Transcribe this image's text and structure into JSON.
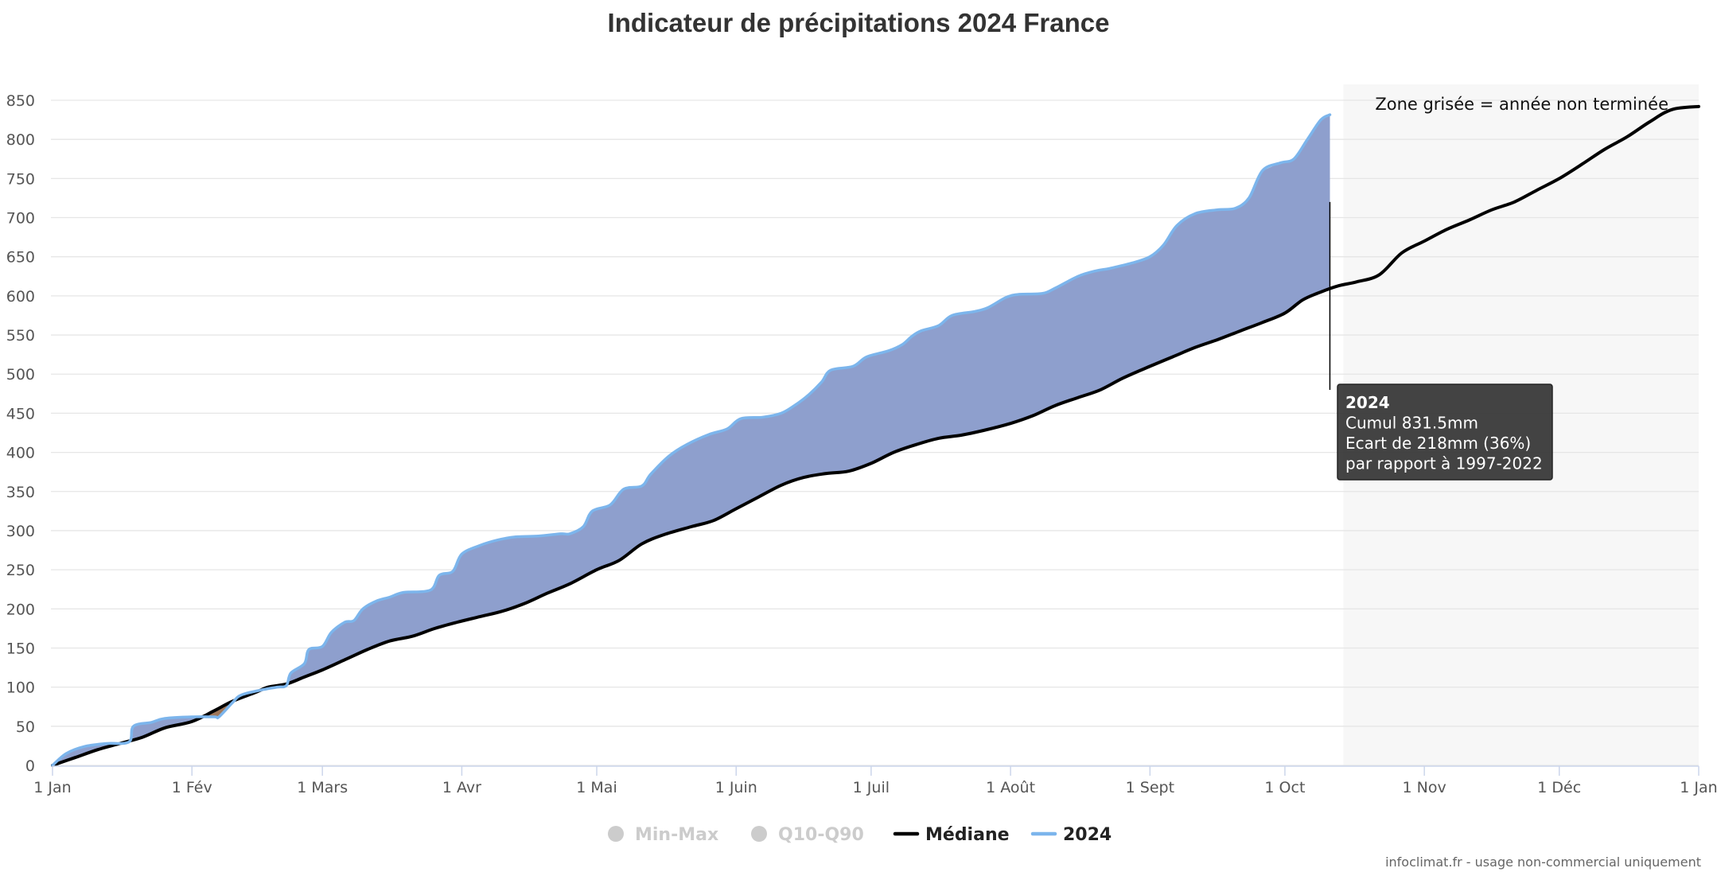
{
  "chart_data": {
    "type": "area",
    "title": "Indicateur de précipitations 2024 France",
    "xlabel": "",
    "ylabel": "",
    "x_unit": "day_of_year",
    "xlim": [
      0,
      366
    ],
    "ylim": [
      0,
      850
    ],
    "yticks": [
      0,
      50,
      100,
      150,
      200,
      250,
      300,
      350,
      400,
      450,
      500,
      550,
      600,
      650,
      700,
      750,
      800,
      850
    ],
    "xticks": [
      {
        "label": "1 Jan",
        "day": 0
      },
      {
        "label": "1 Fév",
        "day": 31
      },
      {
        "label": "1 Mars",
        "day": 60
      },
      {
        "label": "1 Avr",
        "day": 91
      },
      {
        "label": "1 Mai",
        "day": 121
      },
      {
        "label": "1 Juin",
        "day": 152
      },
      {
        "label": "1 Juil",
        "day": 182
      },
      {
        "label": "1 Août",
        "day": 213
      },
      {
        "label": "1 Sept",
        "day": 244
      },
      {
        "label": "1 Oct",
        "day": 274
      },
      {
        "label": "1 Nov",
        "day": 305
      },
      {
        "label": "1 Déc",
        "day": 335
      },
      {
        "label": "1 Jan",
        "day": 366
      }
    ],
    "grid": true,
    "legend_position": "bottom",
    "series": [
      {
        "name": "Médiane",
        "color": "#000000",
        "points": [
          [
            0,
            0
          ],
          [
            5,
            10
          ],
          [
            10,
            20
          ],
          [
            15,
            28
          ],
          [
            20,
            36
          ],
          [
            25,
            48
          ],
          [
            31,
            56
          ],
          [
            36,
            70
          ],
          [
            40,
            82
          ],
          [
            45,
            93
          ],
          [
            48,
            100
          ],
          [
            52,
            104
          ],
          [
            56,
            113
          ],
          [
            60,
            122
          ],
          [
            65,
            135
          ],
          [
            70,
            148
          ],
          [
            75,
            159
          ],
          [
            80,
            165
          ],
          [
            85,
            175
          ],
          [
            90,
            183
          ],
          [
            95,
            190
          ],
          [
            100,
            197
          ],
          [
            105,
            207
          ],
          [
            110,
            220
          ],
          [
            115,
            232
          ],
          [
            121,
            250
          ],
          [
            126,
            262
          ],
          [
            131,
            283
          ],
          [
            136,
            295
          ],
          [
            142,
            305
          ],
          [
            147,
            313
          ],
          [
            152,
            328
          ],
          [
            157,
            343
          ],
          [
            162,
            358
          ],
          [
            167,
            368
          ],
          [
            172,
            373
          ],
          [
            177,
            376
          ],
          [
            182,
            386
          ],
          [
            187,
            400
          ],
          [
            192,
            410
          ],
          [
            197,
            418
          ],
          [
            202,
            422
          ],
          [
            207,
            428
          ],
          [
            213,
            437
          ],
          [
            218,
            447
          ],
          [
            223,
            460
          ],
          [
            228,
            470
          ],
          [
            233,
            480
          ],
          [
            238,
            495
          ],
          [
            244,
            510
          ],
          [
            249,
            522
          ],
          [
            254,
            534
          ],
          [
            259,
            544
          ],
          [
            264,
            555
          ],
          [
            269,
            566
          ],
          [
            274,
            578
          ],
          [
            278,
            595
          ],
          [
            282,
            605
          ],
          [
            286,
            613
          ],
          [
            290,
            618
          ],
          [
            295,
            627
          ],
          [
            300,
            655
          ],
          [
            305,
            670
          ],
          [
            310,
            685
          ],
          [
            315,
            697
          ],
          [
            320,
            710
          ],
          [
            325,
            720
          ],
          [
            330,
            735
          ],
          [
            335,
            750
          ],
          [
            340,
            768
          ],
          [
            345,
            787
          ],
          [
            350,
            803
          ],
          [
            355,
            822
          ],
          [
            360,
            838
          ],
          [
            366,
            842
          ]
        ]
      },
      {
        "name": "2024",
        "color": "#7cb5ec",
        "points": [
          [
            0,
            0
          ],
          [
            3,
            15
          ],
          [
            7,
            24
          ],
          [
            12,
            28
          ],
          [
            17,
            30
          ],
          [
            18,
            50
          ],
          [
            22,
            55
          ],
          [
            25,
            60
          ],
          [
            31,
            62
          ],
          [
            36,
            62
          ],
          [
            37,
            62
          ],
          [
            40,
            80
          ],
          [
            42,
            90
          ],
          [
            47,
            97
          ],
          [
            50,
            100
          ],
          [
            52,
            102
          ],
          [
            53,
            118
          ],
          [
            56,
            130
          ],
          [
            57,
            148
          ],
          [
            60,
            152
          ],
          [
            62,
            170
          ],
          [
            65,
            183
          ],
          [
            67,
            185
          ],
          [
            69,
            200
          ],
          [
            72,
            210
          ],
          [
            75,
            215
          ],
          [
            78,
            221
          ],
          [
            84,
            224
          ],
          [
            86,
            243
          ],
          [
            89,
            248
          ],
          [
            91,
            270
          ],
          [
            95,
            281
          ],
          [
            99,
            288
          ],
          [
            103,
            292
          ],
          [
            108,
            293
          ],
          [
            113,
            296
          ],
          [
            115,
            296
          ],
          [
            118,
            305
          ],
          [
            120,
            325
          ],
          [
            124,
            333
          ],
          [
            127,
            353
          ],
          [
            131,
            357
          ],
          [
            133,
            372
          ],
          [
            137,
            395
          ],
          [
            141,
            410
          ],
          [
            146,
            423
          ],
          [
            150,
            430
          ],
          [
            153,
            443
          ],
          [
            158,
            445
          ],
          [
            162,
            450
          ],
          [
            165,
            460
          ],
          [
            168,
            473
          ],
          [
            171,
            490
          ],
          [
            173,
            505
          ],
          [
            178,
            510
          ],
          [
            181,
            522
          ],
          [
            186,
            530
          ],
          [
            189,
            538
          ],
          [
            191,
            548
          ],
          [
            193,
            555
          ],
          [
            197,
            562
          ],
          [
            200,
            575
          ],
          [
            205,
            580
          ],
          [
            208,
            585
          ],
          [
            212,
            598
          ],
          [
            215,
            602
          ],
          [
            220,
            603
          ],
          [
            223,
            610
          ],
          [
            228,
            625
          ],
          [
            232,
            632
          ],
          [
            235,
            635
          ],
          [
            240,
            642
          ],
          [
            244,
            650
          ],
          [
            247,
            665
          ],
          [
            250,
            690
          ],
          [
            254,
            705
          ],
          [
            259,
            710
          ],
          [
            263,
            712
          ],
          [
            266,
            725
          ],
          [
            269,
            760
          ],
          [
            273,
            770
          ],
          [
            276,
            775
          ],
          [
            279,
            800
          ],
          [
            282,
            825
          ],
          [
            284,
            831.5
          ]
        ]
      }
    ],
    "legend": [
      {
        "label": "Min-Max",
        "color": "#cccccc",
        "symbol": "circle",
        "enabled": false
      },
      {
        "label": "Q10-Q90",
        "color": "#cccccc",
        "symbol": "circle",
        "enabled": false
      },
      {
        "label": "Médiane",
        "color": "#000000",
        "symbol": "line",
        "enabled": true
      },
      {
        "label": "2024",
        "color": "#7cb5ec",
        "symbol": "line",
        "enabled": true
      }
    ],
    "fills": {
      "above_median": "#8e9fcd",
      "below_median": "#a0785a"
    },
    "shaded_region": {
      "from_day": 287,
      "to_day": 366,
      "color": "#f7f7f7",
      "label": "Zone grisée = année non terminée"
    },
    "tooltip": {
      "day": 284,
      "value_2024": 831.5,
      "value_median": 613,
      "lines": [
        "2024",
        "Cumul 831.5mm",
        "Ecart de 218mm (36%)",
        "par rapport à 1997-2022"
      ]
    },
    "credit": "infoclimat.fr - usage non-commercial uniquement"
  }
}
